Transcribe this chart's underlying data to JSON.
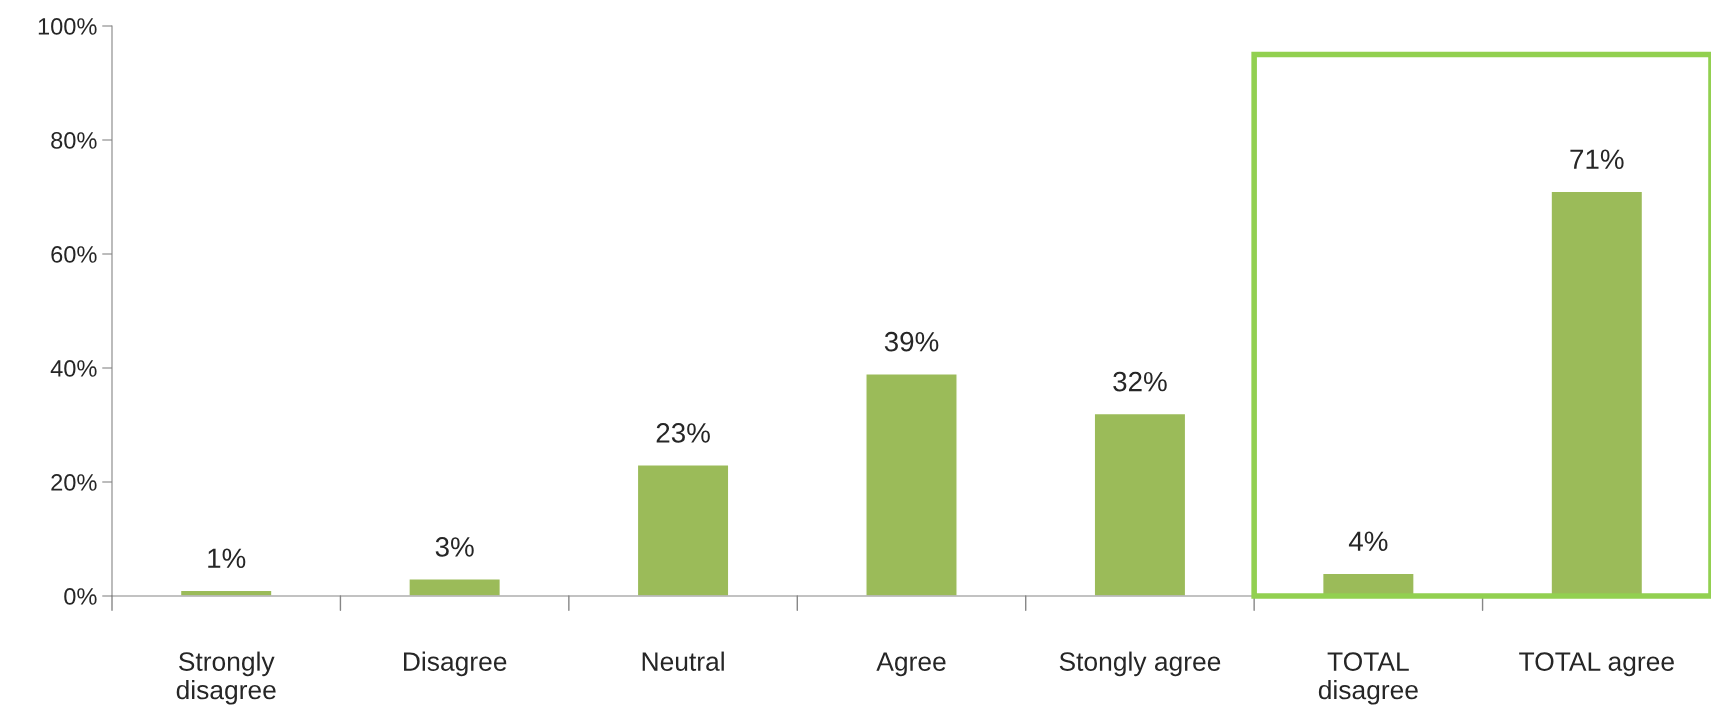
{
  "chart_data": {
    "type": "bar",
    "categories": [
      "Strongly\ndisagree",
      "Disagree",
      "Neutral",
      "Agree",
      "Stongly agree",
      "TOTAL\ndisagree",
      "TOTAL agree"
    ],
    "values": [
      1,
      3,
      23,
      39,
      32,
      4,
      71
    ],
    "value_labels": [
      "1%",
      "3%",
      "23%",
      "39%",
      "32%",
      "4%",
      "71%"
    ],
    "color": "#9bbb59",
    "ylim": [
      0,
      100
    ],
    "yticks": [
      {
        "value": 0,
        "label": "0%"
      },
      {
        "value": 20,
        "label": "20%"
      },
      {
        "value": 40,
        "label": "40%"
      },
      {
        "value": 60,
        "label": "60%"
      },
      {
        "value": 80,
        "label": "80%"
      },
      {
        "value": 100,
        "label": "100%"
      }
    ],
    "grid": false,
    "legend": false
  }
}
